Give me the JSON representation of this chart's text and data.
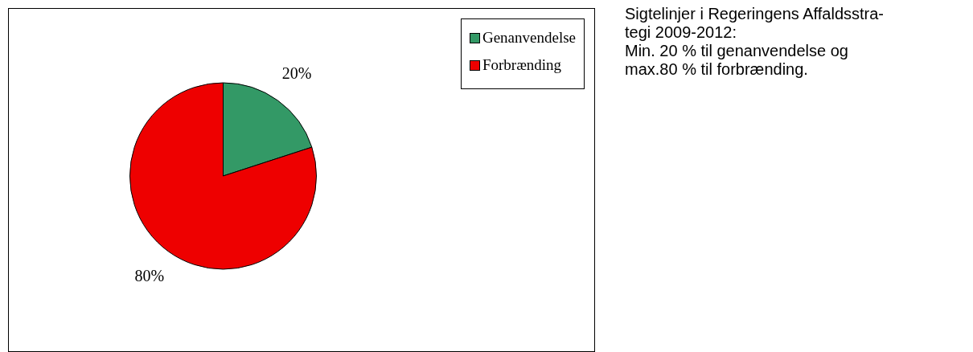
{
  "chart_data": {
    "type": "pie",
    "categories": [
      "Genanvendelse",
      "Forbrænding"
    ],
    "values": [
      20,
      80
    ],
    "colors": [
      "#339966",
      "#ee0000"
    ],
    "value_labels": [
      "20%",
      "80%"
    ],
    "legend": "top right",
    "annotations": [
      "Sigtelinjer i Regeringens Affaldsstra-\ntegi 2009-2012:\nMin. 20 % til genanvendelse og\nmax.80 % til forbrænding."
    ]
  }
}
